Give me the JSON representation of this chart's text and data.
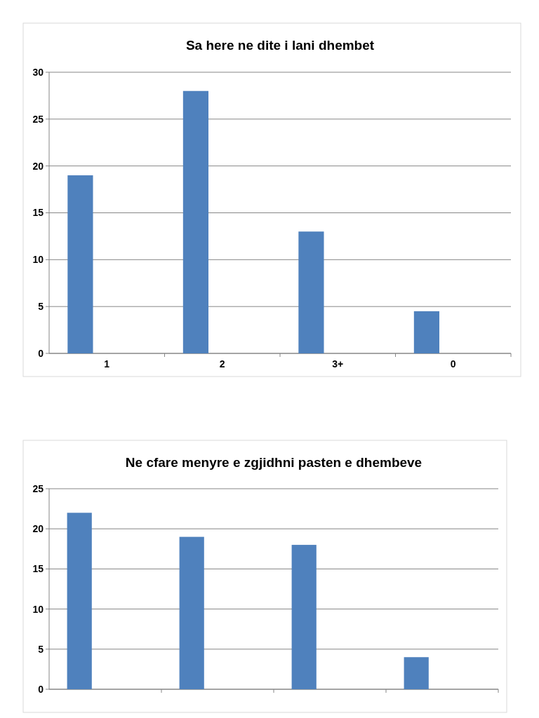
{
  "chart_data": [
    {
      "type": "bar",
      "title": "Sa here ne dite i lani dhembet",
      "categories": [
        "1",
        "2",
        "3+",
        "0"
      ],
      "values": [
        19,
        28,
        13,
        4.5
      ],
      "color": "#4f81bd",
      "ylim": [
        0,
        30
      ],
      "yticks": [
        0,
        5,
        10,
        15,
        20,
        25,
        30
      ],
      "grid": "y"
    },
    {
      "type": "bar",
      "title": "Ne cfare menyre e zgjidhni pasten e dhembeve",
      "categories": [
        null,
        null,
        null,
        null
      ],
      "values": [
        22,
        19,
        18,
        4
      ],
      "color": "#4f81bd",
      "ylim": [
        0,
        25
      ],
      "yticks": [
        0,
        5,
        10,
        15,
        20,
        25
      ],
      "grid": "y"
    }
  ]
}
